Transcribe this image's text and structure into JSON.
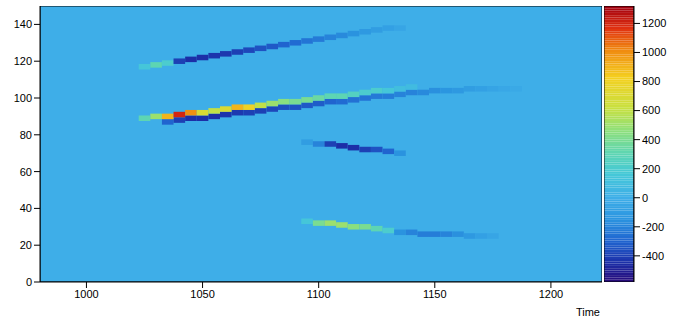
{
  "chart_data": {
    "type": "heatmap",
    "x_label": "Time",
    "xlim": [
      980,
      1222
    ],
    "xticks": [
      1000,
      1050,
      1100,
      1150,
      1200
    ],
    "ylim": [
      0,
      150
    ],
    "yticks": [
      0,
      20,
      40,
      60,
      80,
      100,
      120,
      140
    ],
    "x_bin": 5,
    "y_bin": 3,
    "colorbar": {
      "range": [
        -580,
        1320
      ],
      "ticks": [
        -400,
        -200,
        0,
        200,
        400,
        600,
        800,
        1000,
        1200
      ]
    },
    "cells": [
      {
        "x": 1025,
        "y": 117,
        "value": 150
      },
      {
        "x": 1030,
        "y": 118,
        "value": 300
      },
      {
        "x": 1035,
        "y": 119,
        "value": 200
      },
      {
        "x": 1040,
        "y": 120,
        "value": -400
      },
      {
        "x": 1045,
        "y": 121,
        "value": -450
      },
      {
        "x": 1050,
        "y": 122,
        "value": -450
      },
      {
        "x": 1055,
        "y": 123,
        "value": -430
      },
      {
        "x": 1060,
        "y": 124,
        "value": -420
      },
      {
        "x": 1065,
        "y": 125,
        "value": -400
      },
      {
        "x": 1070,
        "y": 126,
        "value": -380
      },
      {
        "x": 1075,
        "y": 127,
        "value": -350
      },
      {
        "x": 1080,
        "y": 128,
        "value": -330
      },
      {
        "x": 1085,
        "y": 129,
        "value": -300
      },
      {
        "x": 1090,
        "y": 130,
        "value": -280
      },
      {
        "x": 1095,
        "y": 131,
        "value": -250
      },
      {
        "x": 1100,
        "y": 132,
        "value": -230
      },
      {
        "x": 1105,
        "y": 133,
        "value": -200
      },
      {
        "x": 1110,
        "y": 134,
        "value": -180
      },
      {
        "x": 1115,
        "y": 135,
        "value": -150
      },
      {
        "x": 1120,
        "y": 136,
        "value": -120
      },
      {
        "x": 1125,
        "y": 137,
        "value": -100
      },
      {
        "x": 1130,
        "y": 138,
        "value": -80
      },
      {
        "x": 1135,
        "y": 138,
        "value": -50
      },
      {
        "x": 1035,
        "y": 87,
        "value": -300
      },
      {
        "x": 1040,
        "y": 88,
        "value": -400
      },
      {
        "x": 1045,
        "y": 89,
        "value": -450
      },
      {
        "x": 1050,
        "y": 89,
        "value": -450
      },
      {
        "x": 1055,
        "y": 90,
        "value": -450
      },
      {
        "x": 1060,
        "y": 91,
        "value": -430
      },
      {
        "x": 1065,
        "y": 92,
        "value": -420
      },
      {
        "x": 1070,
        "y": 92,
        "value": -400
      },
      {
        "x": 1075,
        "y": 93,
        "value": -400
      },
      {
        "x": 1080,
        "y": 94,
        "value": -380
      },
      {
        "x": 1085,
        "y": 95,
        "value": -360
      },
      {
        "x": 1090,
        "y": 95,
        "value": -350
      },
      {
        "x": 1095,
        "y": 96,
        "value": -330
      },
      {
        "x": 1100,
        "y": 97,
        "value": -320
      },
      {
        "x": 1105,
        "y": 98,
        "value": -300
      },
      {
        "x": 1110,
        "y": 98,
        "value": -280
      },
      {
        "x": 1115,
        "y": 99,
        "value": -260
      },
      {
        "x": 1120,
        "y": 100,
        "value": -250
      },
      {
        "x": 1125,
        "y": 101,
        "value": -230
      },
      {
        "x": 1130,
        "y": 101,
        "value": -220
      },
      {
        "x": 1135,
        "y": 102,
        "value": -200
      },
      {
        "x": 1140,
        "y": 103,
        "value": -200
      },
      {
        "x": 1145,
        "y": 103,
        "value": -180
      },
      {
        "x": 1150,
        "y": 104,
        "value": -160
      },
      {
        "x": 1155,
        "y": 104,
        "value": -140
      },
      {
        "x": 1160,
        "y": 104,
        "value": -120
      },
      {
        "x": 1165,
        "y": 105,
        "value": -100
      },
      {
        "x": 1170,
        "y": 105,
        "value": -80
      },
      {
        "x": 1175,
        "y": 105,
        "value": -60
      },
      {
        "x": 1180,
        "y": 105,
        "value": -40
      },
      {
        "x": 1185,
        "y": 105,
        "value": -30
      },
      {
        "x": 1025,
        "y": 89,
        "value": 300
      },
      {
        "x": 1030,
        "y": 90,
        "value": 500
      },
      {
        "x": 1035,
        "y": 90,
        "value": 900
      },
      {
        "x": 1040,
        "y": 91,
        "value": 1200
      },
      {
        "x": 1045,
        "y": 92,
        "value": 1000
      },
      {
        "x": 1050,
        "y": 92,
        "value": 700
      },
      {
        "x": 1055,
        "y": 93,
        "value": 600
      },
      {
        "x": 1060,
        "y": 94,
        "value": 700
      },
      {
        "x": 1065,
        "y": 95,
        "value": 900
      },
      {
        "x": 1070,
        "y": 95,
        "value": 800
      },
      {
        "x": 1075,
        "y": 96,
        "value": 600
      },
      {
        "x": 1080,
        "y": 97,
        "value": 500
      },
      {
        "x": 1085,
        "y": 98,
        "value": 450
      },
      {
        "x": 1090,
        "y": 98,
        "value": 400
      },
      {
        "x": 1095,
        "y": 99,
        "value": 400
      },
      {
        "x": 1100,
        "y": 100,
        "value": 350
      },
      {
        "x": 1105,
        "y": 101,
        "value": 300
      },
      {
        "x": 1110,
        "y": 101,
        "value": 300
      },
      {
        "x": 1115,
        "y": 102,
        "value": 250
      },
      {
        "x": 1120,
        "y": 103,
        "value": 200
      },
      {
        "x": 1125,
        "y": 104,
        "value": 200
      },
      {
        "x": 1130,
        "y": 104,
        "value": 150
      },
      {
        "x": 1135,
        "y": 105,
        "value": 100
      },
      {
        "x": 1140,
        "y": 106,
        "value": 80
      },
      {
        "x": 1095,
        "y": 76,
        "value": -100
      },
      {
        "x": 1100,
        "y": 75,
        "value": -200
      },
      {
        "x": 1105,
        "y": 75,
        "value": -400
      },
      {
        "x": 1110,
        "y": 74,
        "value": -450
      },
      {
        "x": 1115,
        "y": 73,
        "value": -450
      },
      {
        "x": 1120,
        "y": 72,
        "value": -400
      },
      {
        "x": 1125,
        "y": 72,
        "value": -350
      },
      {
        "x": 1130,
        "y": 71,
        "value": -300
      },
      {
        "x": 1135,
        "y": 70,
        "value": -150
      },
      {
        "x": 1095,
        "y": 33,
        "value": 150
      },
      {
        "x": 1100,
        "y": 32,
        "value": 400
      },
      {
        "x": 1105,
        "y": 32,
        "value": 500
      },
      {
        "x": 1110,
        "y": 31,
        "value": 500
      },
      {
        "x": 1115,
        "y": 30,
        "value": 450
      },
      {
        "x": 1120,
        "y": 30,
        "value": 400
      },
      {
        "x": 1125,
        "y": 29,
        "value": 300
      },
      {
        "x": 1130,
        "y": 28,
        "value": 200
      },
      {
        "x": 1135,
        "y": 27,
        "value": -150
      },
      {
        "x": 1140,
        "y": 27,
        "value": -200
      },
      {
        "x": 1145,
        "y": 26,
        "value": -220
      },
      {
        "x": 1150,
        "y": 26,
        "value": -220
      },
      {
        "x": 1155,
        "y": 26,
        "value": -200
      },
      {
        "x": 1160,
        "y": 26,
        "value": -160
      },
      {
        "x": 1165,
        "y": 25,
        "value": -120
      },
      {
        "x": 1170,
        "y": 25,
        "value": -80
      },
      {
        "x": 1175,
        "y": 25,
        "value": -50
      }
    ]
  }
}
